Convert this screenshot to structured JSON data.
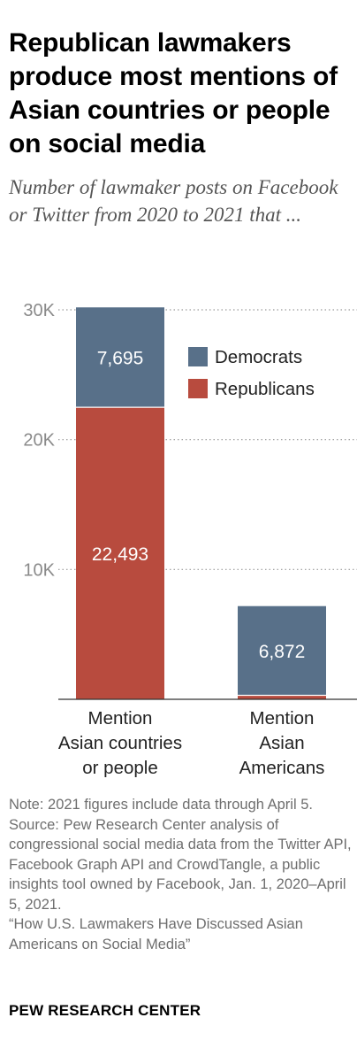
{
  "title": "Republican lawmakers produce most mentions of Asian countries or people on social media",
  "subtitle": "Number of lawmaker posts on Facebook or Twitter from 2020 to 2021 that ...",
  "note": "Note: 2021 figures include data through April 5.",
  "source": "Source: Pew Research Center analysis of congressional social media data from the Twitter API, Facebook Graph API and CrowdTangle, a public insights tool owned by Facebook, Jan. 1, 2020–April 5, 2021.\n“How U.S. Lawmakers Have Discussed Asian Americans on Social Media”",
  "brand": "PEW RESEARCH CENTER",
  "colors": {
    "democrats": "#587089",
    "republicans": "#b84b3e",
    "grid": "#9a9a9a"
  },
  "chart_data": {
    "type": "bar",
    "stacked": true,
    "categories": [
      "Mention Asian countries or people",
      "Mention Asian Americans"
    ],
    "category_label_lines": [
      [
        "Mention",
        "Asian countries",
        "or people"
      ],
      [
        "Mention",
        "Asian",
        "Americans"
      ]
    ],
    "series": [
      {
        "name": "Republicans",
        "values": [
          22493,
          306
        ],
        "labels": [
          "22,493",
          ""
        ]
      },
      {
        "name": "Democrats",
        "values": [
          7695,
          6872
        ],
        "labels": [
          "7,695",
          "6,872"
        ]
      }
    ],
    "ylim": [
      0,
      30000
    ],
    "yticks": [
      10000,
      20000,
      30000
    ],
    "ytick_labels": [
      "10K",
      "20K",
      "30K"
    ],
    "grid": true,
    "legend": "top-right"
  }
}
